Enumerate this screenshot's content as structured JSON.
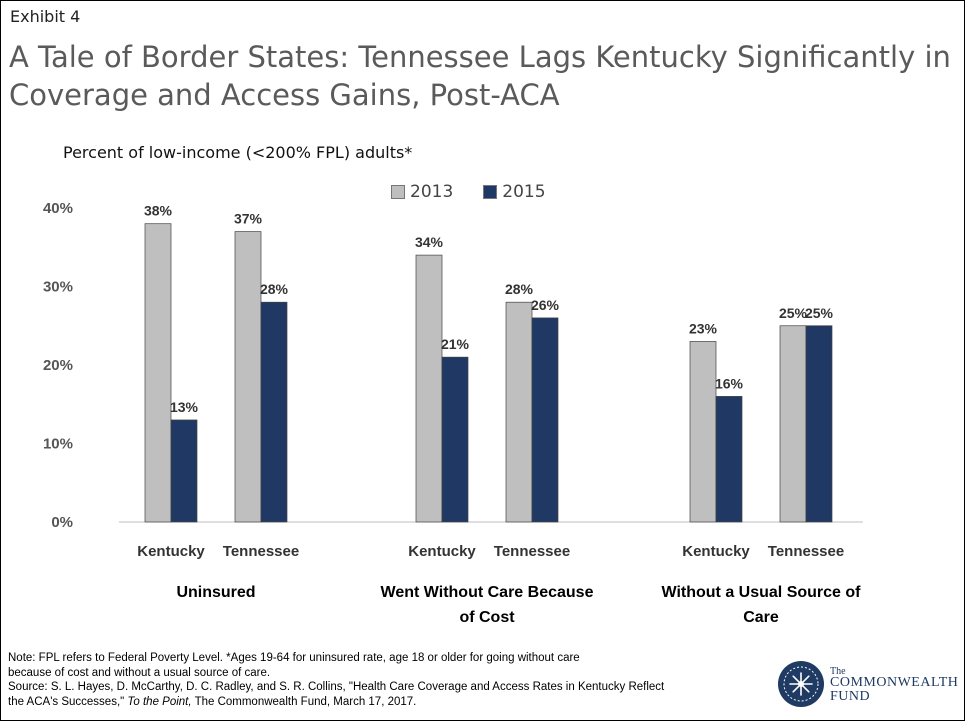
{
  "exhibit": "Exhibit 4",
  "title": "A Tale of Border States: Tennessee Lags Kentucky Significantly in Coverage and Access Gains, Post-ACA",
  "subtitle": "Percent of low-income (<200% FPL) adults*",
  "note": {
    "line1": "Note: FPL refers to Federal Poverty Level. *Ages 19-64 for uninsured rate, age 18 or older for going without care",
    "line2": " because of cost and without a usual source of care.",
    "source_a": "Source: S. L. Hayes, D. McCarthy, D. C. Radley, and S. R. Collins, \"Health Care Coverage and Access Rates in Kentucky Reflect",
    "source_b": "the ACA's Successes,\" ",
    "source_italic": "To the Point,",
    "source_c": " The Commonwealth Fund, March 17, 2017."
  },
  "logo": {
    "the": "The",
    "line1": "COMMONWEALTH",
    "line2": "FUND"
  },
  "colors": {
    "series_2013": "#bfbfbf",
    "series_2015": "#1f3864",
    "bar_edge": "#444444"
  },
  "chart_data": {
    "type": "bar",
    "subtitle": "Percent of low-income (<200% FPL) adults*",
    "ylim": [
      0,
      40
    ],
    "yticks": [
      "0%",
      "10%",
      "20%",
      "30%",
      "40%"
    ],
    "series": [
      {
        "name": "2013",
        "color": "#bfbfbf"
      },
      {
        "name": "2015",
        "color": "#1f3864"
      }
    ],
    "legend": "top-center",
    "grid": false,
    "groups": [
      {
        "label": "Uninsured",
        "categories": [
          {
            "name": "Kentucky",
            "values": [
              38,
              13
            ],
            "labels": [
              "38%",
              "13%"
            ]
          },
          {
            "name": "Tennessee",
            "values": [
              37,
              28
            ],
            "labels": [
              "37%",
              "28%"
            ]
          }
        ]
      },
      {
        "label": "Went Without Care Because of Cost",
        "categories": [
          {
            "name": "Kentucky",
            "values": [
              34,
              21
            ],
            "labels": [
              "34%",
              "21%"
            ]
          },
          {
            "name": "Tennessee",
            "values": [
              28,
              26
            ],
            "labels": [
              "28%",
              "26%"
            ]
          }
        ]
      },
      {
        "label": "Without a Usual Source of Care",
        "categories": [
          {
            "name": "Kentucky",
            "values": [
              23,
              16
            ],
            "labels": [
              "23%",
              "16%"
            ]
          },
          {
            "name": "Tennessee",
            "values": [
              25,
              25
            ],
            "labels": [
              "25%",
              "25%"
            ]
          }
        ]
      }
    ]
  }
}
